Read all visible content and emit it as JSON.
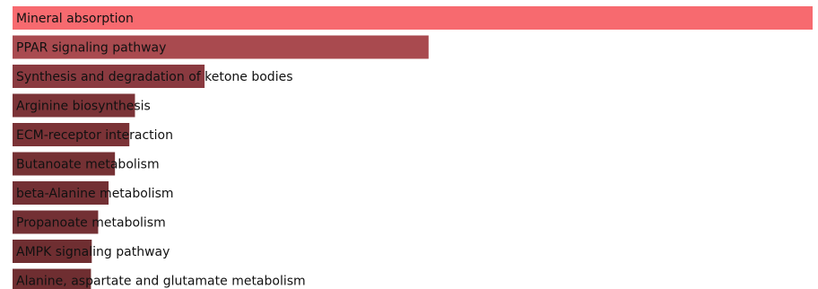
{
  "chart_data": {
    "type": "bar",
    "orientation": "horizontal",
    "categories": [
      "Mineral absorption",
      "PPAR signaling pathway",
      "Synthesis and degradation of ketone bodies",
      "Arginine biosynthesis",
      "ECM-receptor interaction",
      "Butanoate metabolism",
      "beta-Alanine metabolism",
      "Propanoate metabolism",
      "AMPK signaling pathway",
      "Alanine, aspartate and glutamate metabolism"
    ],
    "values": [
      1.0,
      0.52,
      0.24,
      0.153,
      0.146,
      0.128,
      0.12,
      0.107,
      0.099,
      0.098
    ],
    "colors": [
      "#f76a6f",
      "#a94a4f",
      "#8a3a40",
      "#7b3337",
      "#7b3337",
      "#753134",
      "#733034",
      "#733034",
      "#6f2e31",
      "#6f2e31"
    ],
    "title": "",
    "xlabel": "",
    "ylabel": "",
    "xlim": [
      0,
      1.0
    ],
    "grid": false,
    "legend": "none"
  }
}
